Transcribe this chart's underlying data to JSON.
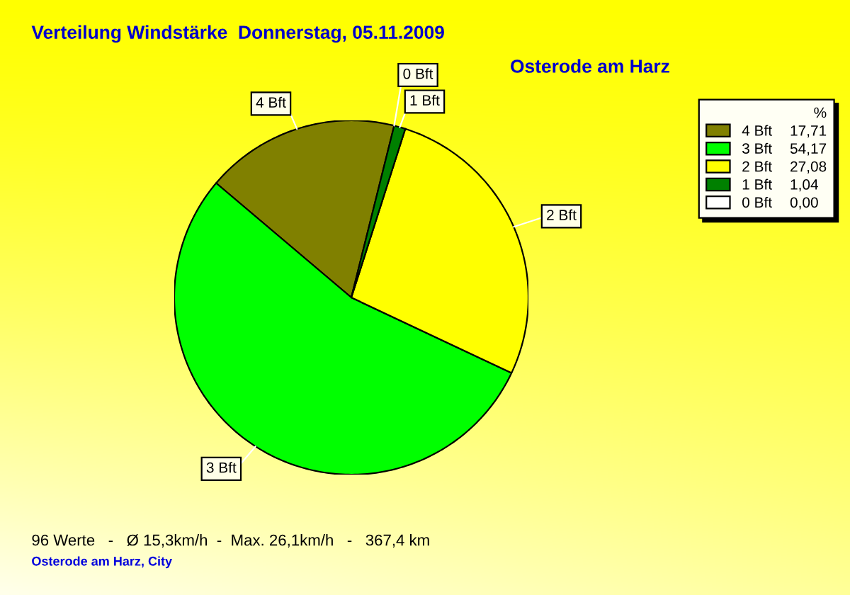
{
  "chart_data": {
    "type": "pie",
    "title": "Verteilung Windstärke  Donnerstag, 05.11.2009",
    "subtitle": "Osterode am Harz",
    "categories": [
      "4 Bft",
      "3 Bft",
      "2 Bft",
      "1 Bft",
      "0 Bft"
    ],
    "values": [
      17.71,
      54.17,
      27.08,
      1.04,
      0
    ],
    "value_labels": [
      "17,71",
      "54,17",
      "27,08",
      "1,04",
      "0,00"
    ],
    "colors": [
      "#808000",
      "#00ff00",
      "#ffff00",
      "#008000",
      "#ffffff"
    ],
    "legend": "top right",
    "legend_title": "%",
    "annotations": [
      "96 Werte   -   Ø 15,3km/h  -  Max. 26,1km/h   -   367,4 km",
      "Osterode am Harz, City"
    ]
  }
}
